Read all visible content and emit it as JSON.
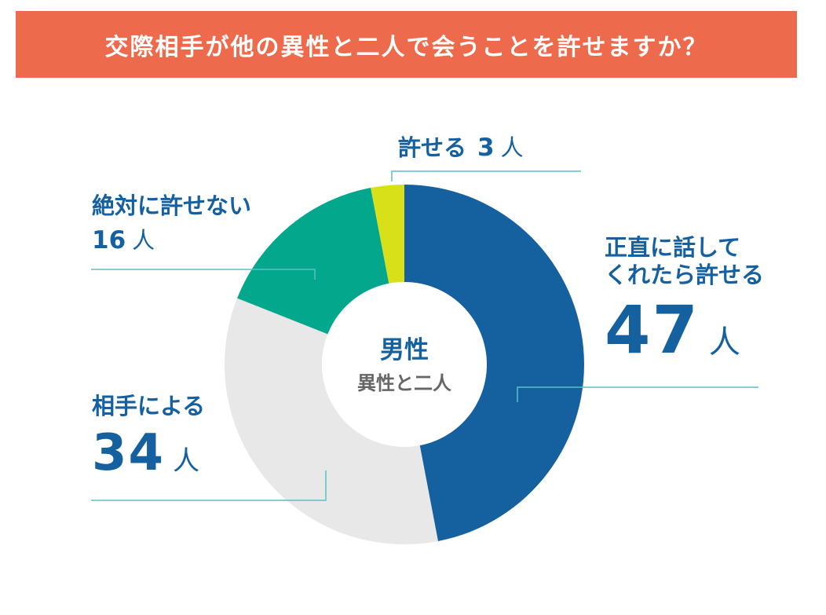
{
  "title": "交際相手が他の異性と二人で会うことを許せますか？",
  "colors": {
    "banner": "#ed6a4c",
    "text_blue": "#15609f",
    "text_gray": "#666666",
    "leader_line": "#5bbfc7"
  },
  "center": {
    "main": "男性",
    "sub": "異性と二人"
  },
  "labels": {
    "honest": {
      "line1": "正直に話して",
      "line2": "くれたら許せる",
      "value": "47",
      "unit": "人"
    },
    "depends": {
      "line1": "相手による",
      "value": "34",
      "unit": "人"
    },
    "never": {
      "line1": "絶対に許せない",
      "value": "16",
      "unit": "人"
    },
    "ok": {
      "line1": "許せる",
      "value": "3",
      "unit": "人"
    }
  },
  "chart_data": {
    "type": "pie",
    "donut": true,
    "start": "top",
    "direction": "clockwise",
    "slices": [
      {
        "label": "正直に話してくれたら許せる",
        "value": 47,
        "unit": "人",
        "color": "#15609f"
      },
      {
        "label": "相手による",
        "value": 34,
        "unit": "人",
        "color": "#e8e8e8"
      },
      {
        "label": "絶対に許せない",
        "value": 16,
        "unit": "人",
        "color": "#03a78c"
      },
      {
        "label": "許せる",
        "value": 3,
        "unit": "人",
        "color": "#d8e019"
      }
    ]
  }
}
